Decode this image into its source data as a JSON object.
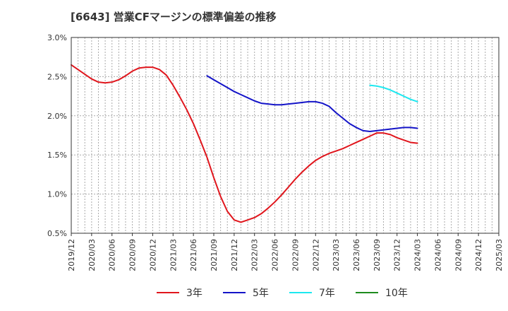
{
  "chart_data": {
    "type": "line",
    "title": "[6643]  営業CFマージンの標準偏差の推移",
    "xlabel": "",
    "ylabel": "",
    "x_ticks": [
      "2019/12",
      "2020/03",
      "2020/06",
      "2020/09",
      "2020/12",
      "2021/03",
      "2021/06",
      "2021/09",
      "2021/12",
      "2022/03",
      "2022/06",
      "2022/09",
      "2022/12",
      "2023/03",
      "2023/06",
      "2023/09",
      "2023/12",
      "2024/03",
      "2024/06",
      "2024/09",
      "2024/12",
      "2025/03"
    ],
    "y_ticks": [
      "0.5%",
      "1.0%",
      "1.5%",
      "2.0%",
      "2.5%",
      "3.0%"
    ],
    "ylim": [
      0.5,
      3.0
    ],
    "grid": true,
    "legend_position": "bottom",
    "series": [
      {
        "name": "3年",
        "color": "#e0161d",
        "points": [
          [
            "2019/12",
            2.65
          ],
          [
            "2020/01",
            2.59
          ],
          [
            "2020/02",
            2.53
          ],
          [
            "2020/03",
            2.47
          ],
          [
            "2020/04",
            2.43
          ],
          [
            "2020/05",
            2.42
          ],
          [
            "2020/06",
            2.43
          ],
          [
            "2020/07",
            2.46
          ],
          [
            "2020/08",
            2.51
          ],
          [
            "2020/09",
            2.57
          ],
          [
            "2020/10",
            2.61
          ],
          [
            "2020/11",
            2.62
          ],
          [
            "2020/12",
            2.62
          ],
          [
            "2021/01",
            2.59
          ],
          [
            "2021/02",
            2.52
          ],
          [
            "2021/03",
            2.39
          ],
          [
            "2021/04",
            2.24
          ],
          [
            "2021/05",
            2.08
          ],
          [
            "2021/06",
            1.9
          ],
          [
            "2021/07",
            1.69
          ],
          [
            "2021/08",
            1.47
          ],
          [
            "2021/09",
            1.21
          ],
          [
            "2021/10",
            0.97
          ],
          [
            "2021/11",
            0.78
          ],
          [
            "2021/12",
            0.67
          ],
          [
            "2022/01",
            0.64
          ],
          [
            "2022/02",
            0.67
          ],
          [
            "2022/03",
            0.7
          ],
          [
            "2022/04",
            0.75
          ],
          [
            "2022/05",
            0.82
          ],
          [
            "2022/06",
            0.9
          ],
          [
            "2022/07",
            0.99
          ],
          [
            "2022/08",
            1.09
          ],
          [
            "2022/09",
            1.19
          ],
          [
            "2022/10",
            1.28
          ],
          [
            "2022/11",
            1.36
          ],
          [
            "2022/12",
            1.43
          ],
          [
            "2023/01",
            1.48
          ],
          [
            "2023/02",
            1.52
          ],
          [
            "2023/03",
            1.55
          ],
          [
            "2023/04",
            1.58
          ],
          [
            "2023/05",
            1.62
          ],
          [
            "2023/06",
            1.66
          ],
          [
            "2023/07",
            1.7
          ],
          [
            "2023/08",
            1.74
          ],
          [
            "2023/09",
            1.78
          ],
          [
            "2023/10",
            1.78
          ],
          [
            "2023/11",
            1.76
          ],
          [
            "2023/12",
            1.72
          ],
          [
            "2024/01",
            1.69
          ],
          [
            "2024/02",
            1.66
          ],
          [
            "2024/03",
            1.65
          ]
        ]
      },
      {
        "name": "5年",
        "color": "#1414c8",
        "points": [
          [
            "2021/08",
            2.51
          ],
          [
            "2021/09",
            2.46
          ],
          [
            "2021/10",
            2.41
          ],
          [
            "2021/11",
            2.36
          ],
          [
            "2021/12",
            2.31
          ],
          [
            "2022/01",
            2.27
          ],
          [
            "2022/02",
            2.23
          ],
          [
            "2022/03",
            2.19
          ],
          [
            "2022/04",
            2.16
          ],
          [
            "2022/05",
            2.15
          ],
          [
            "2022/06",
            2.14
          ],
          [
            "2022/07",
            2.14
          ],
          [
            "2022/08",
            2.15
          ],
          [
            "2022/09",
            2.16
          ],
          [
            "2022/10",
            2.17
          ],
          [
            "2022/11",
            2.18
          ],
          [
            "2022/12",
            2.18
          ],
          [
            "2023/01",
            2.16
          ],
          [
            "2023/02",
            2.12
          ],
          [
            "2023/03",
            2.04
          ],
          [
            "2023/04",
            1.97
          ],
          [
            "2023/05",
            1.9
          ],
          [
            "2023/06",
            1.85
          ],
          [
            "2023/07",
            1.81
          ],
          [
            "2023/08",
            1.8
          ],
          [
            "2023/09",
            1.81
          ],
          [
            "2023/10",
            1.82
          ],
          [
            "2023/11",
            1.83
          ],
          [
            "2023/12",
            1.84
          ],
          [
            "2024/01",
            1.85
          ],
          [
            "2024/02",
            1.85
          ],
          [
            "2024/03",
            1.84
          ]
        ]
      },
      {
        "name": "7年",
        "color": "#1de8f0",
        "points": [
          [
            "2023/08",
            2.39
          ],
          [
            "2023/09",
            2.38
          ],
          [
            "2023/10",
            2.36
          ],
          [
            "2023/11",
            2.33
          ],
          [
            "2023/12",
            2.29
          ],
          [
            "2024/01",
            2.25
          ],
          [
            "2024/02",
            2.21
          ],
          [
            "2024/03",
            2.18
          ]
        ]
      },
      {
        "name": "10年",
        "color": "#1e8c1e",
        "points": []
      }
    ]
  }
}
